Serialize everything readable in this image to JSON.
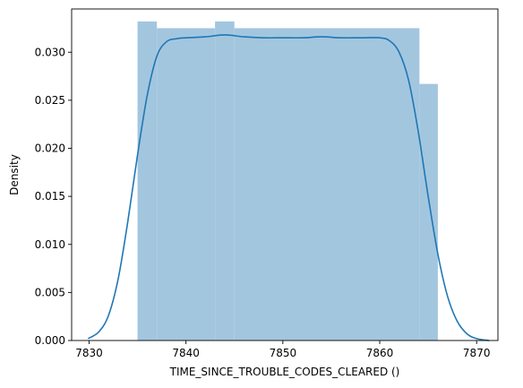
{
  "chart_data": {
    "type": "histogram-with-kde",
    "title": "",
    "xlabel": "TIME_SINCE_TROUBLE_CODES_CLEARED ()",
    "ylabel": "Density",
    "xlim": [
      7828.2,
      7872.2
    ],
    "ylim": [
      0,
      0.0345
    ],
    "x_ticks": [
      7830,
      7840,
      7850,
      7860,
      7870
    ],
    "y_ticks": [
      0.0,
      0.005,
      0.01,
      0.015,
      0.02,
      0.025,
      0.03
    ],
    "x_tick_labels": [
      "7830",
      "7840",
      "7850",
      "7860",
      "7870"
    ],
    "y_tick_labels": [
      "0.000",
      "0.005",
      "0.010",
      "0.015",
      "0.020",
      "0.025",
      "0.030"
    ],
    "grid": false,
    "histogram": {
      "color": "#a3c6df",
      "bins": [
        {
          "x0": 7835.0,
          "x1": 7837.0,
          "density": 0.0332
        },
        {
          "x0": 7837.0,
          "x1": 7843.0,
          "density": 0.0325
        },
        {
          "x0": 7843.0,
          "x1": 7845.0,
          "density": 0.0332
        },
        {
          "x0": 7845.0,
          "x1": 7864.1,
          "density": 0.0325
        },
        {
          "x0": 7864.1,
          "x1": 7866.0,
          "density": 0.0267
        }
      ]
    },
    "kde": {
      "color": "#1f77b4",
      "x": [
        7829.9,
        7831.0,
        7832.0,
        7833.0,
        7834.0,
        7835.0,
        7836.0,
        7837.0,
        7838.0,
        7839.0,
        7840.0,
        7842.0,
        7844.0,
        7846.0,
        7848.0,
        7850.0,
        7852.0,
        7854.0,
        7856.0,
        7858.0,
        7860.0,
        7861.0,
        7862.0,
        7863.0,
        7864.0,
        7865.0,
        7866.0,
        7867.0,
        7868.0,
        7869.0,
        7870.0,
        7871.3
      ],
      "y": [
        0.0002,
        0.0009,
        0.0026,
        0.0064,
        0.0124,
        0.0193,
        0.0255,
        0.0296,
        0.0311,
        0.0314,
        0.0315,
        0.0316,
        0.0318,
        0.0316,
        0.0315,
        0.0315,
        0.0315,
        0.0316,
        0.0315,
        0.0315,
        0.0315,
        0.0312,
        0.03,
        0.027,
        0.0216,
        0.015,
        0.009,
        0.0046,
        0.002,
        0.0007,
        0.0002,
        0.0
      ]
    }
  }
}
